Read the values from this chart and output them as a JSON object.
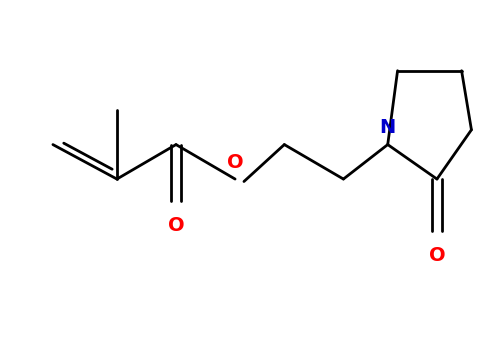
{
  "background_color": "#ffffff",
  "bond_color": "#000000",
  "oxygen_color": "#ff0000",
  "nitrogen_color": "#0000cc",
  "line_width": 2.0,
  "font_size": 13,
  "fig_width": 4.82,
  "fig_height": 3.64,
  "dpi": 100,
  "xlim": [
    0,
    9.64
  ],
  "ylim": [
    0,
    7.28
  ],
  "term_x": 1.0,
  "term_y": 4.4,
  "alpha_x": 2.3,
  "alpha_y": 3.7,
  "meth_x": 2.3,
  "meth_y": 5.1,
  "carb_x": 3.5,
  "carb_y": 4.4,
  "co_x": 3.5,
  "co_y": 3.0,
  "ester_o_x": 4.7,
  "ester_o_y": 3.7,
  "och2_x": 5.7,
  "och2_y": 4.4,
  "ch2b_x": 6.9,
  "ch2b_y": 3.7,
  "n_x": 7.8,
  "n_y": 4.4,
  "c2_x": 8.8,
  "c2_y": 3.7,
  "pyr_o_x": 8.8,
  "pyr_o_y": 2.4,
  "c3_x": 9.5,
  "c3_y": 4.7,
  "c4_x": 9.3,
  "c4_y": 5.9,
  "c5_x": 8.0,
  "c5_y": 5.9
}
